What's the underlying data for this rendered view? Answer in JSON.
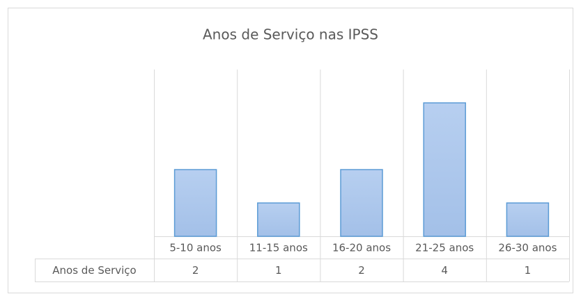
{
  "chart_data": {
    "type": "bar",
    "title": "Anos de Serviço nas IPSS",
    "categories": [
      "5-10 anos",
      "11-15 anos",
      "16-20 anos",
      "21-25 anos",
      "26-30 anos"
    ],
    "series": [
      {
        "name": "Anos de Serviço",
        "color": "#a3c0e8",
        "values": [
          2,
          1,
          2,
          4,
          1
        ]
      }
    ],
    "ylim": [
      0,
      5
    ]
  }
}
